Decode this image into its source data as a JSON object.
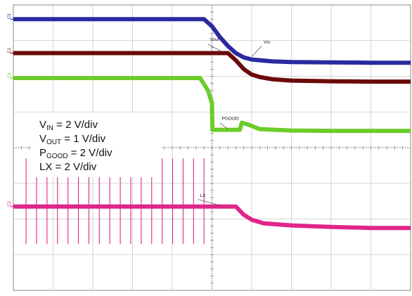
{
  "chart_data": {
    "type": "line",
    "title": "",
    "xlabel": "",
    "ylabel": "",
    "grid": true,
    "grid_divisions": {
      "x": 10,
      "y": 8
    },
    "xlim": [
      0,
      10
    ],
    "ylim": [
      0,
      8
    ],
    "legend": {
      "placement": "left-middle",
      "entries": [
        {
          "main": "V",
          "sub": "IN",
          "rest": " = 2 V/div"
        },
        {
          "main": "V",
          "sub": "OUT",
          "rest": " = 1 V/div"
        },
        {
          "main": "P",
          "sub": "GOOD",
          "rest": " = 2 V/div"
        },
        {
          "main": "LX",
          "sub": "",
          "rest": " = 2 V/div"
        }
      ]
    },
    "series": [
      {
        "name": "VIN",
        "label": "Vin",
        "channel": "C3",
        "color": "#2a2aa0",
        "x": [
          0,
          4.8,
          5.0,
          5.2,
          5.4,
          5.6,
          5.8,
          6.0,
          6.5,
          7.0,
          8.0,
          9.0,
          10.0
        ],
        "y": [
          7.6,
          7.6,
          7.4,
          7.1,
          6.85,
          6.65,
          6.53,
          6.47,
          6.42,
          6.4,
          6.39,
          6.38,
          6.38
        ]
      },
      {
        "name": "VOUT",
        "label": "Vout",
        "channel": "C1",
        "color": "#6b0a0a",
        "x": [
          0,
          5.4,
          5.6,
          5.8,
          6.0,
          6.2,
          6.5,
          7.0,
          8.0,
          9.0,
          10.0
        ],
        "y": [
          6.65,
          6.65,
          6.45,
          6.2,
          6.05,
          5.98,
          5.92,
          5.88,
          5.86,
          5.85,
          5.85
        ]
      },
      {
        "name": "PGOOD",
        "label": "PGOOD",
        "channel": "C4",
        "color": "#6ccc2a",
        "x": [
          0,
          4.7,
          4.9,
          5.0,
          5.01,
          5.7,
          5.75,
          5.9,
          6.2,
          6.6,
          7.0,
          8.0,
          10.0
        ],
        "y": [
          5.95,
          5.95,
          5.6,
          5.25,
          4.5,
          4.5,
          4.7,
          4.65,
          4.52,
          4.5,
          4.48,
          4.47,
          4.47
        ]
      },
      {
        "name": "LX",
        "label": "LX",
        "channel": "C2",
        "color": "#e0258a",
        "x": [
          0,
          5.6,
          5.8,
          6.0,
          6.3,
          7.0,
          8.0,
          9.0,
          10.0
        ],
        "y": [
          2.35,
          2.35,
          2.12,
          1.98,
          1.88,
          1.82,
          1.78,
          1.75,
          1.75
        ],
        "switching_pulses": {
          "x_start": 0.32,
          "x_end": 4.8,
          "count": 18,
          "y_high": 3.7,
          "y_low": 1.3
        }
      }
    ]
  }
}
